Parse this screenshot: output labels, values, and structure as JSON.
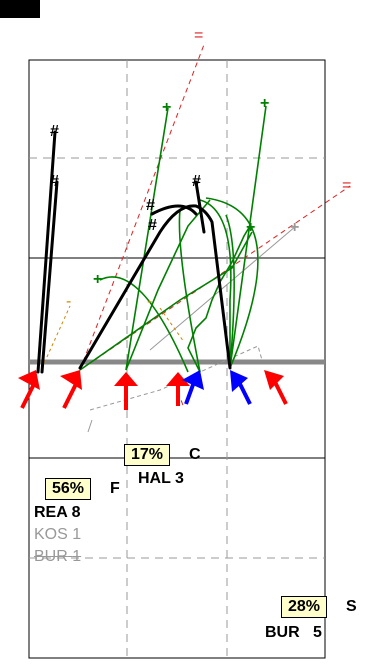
{
  "colors": {
    "field_line": "#000000",
    "grid_dash": "#999999",
    "scrimmage": "#888888",
    "offense_arrow": "#ff0000",
    "defense_arrow": "#0000ff",
    "route_black": "#000000",
    "route_green": "#008000",
    "pct_box_fill": "#ffffcc",
    "dim_text": "#999999"
  },
  "icons": {
    "corner_block": "black-rectangle",
    "offense_marker": "red-arrow-icon",
    "defense_marker": "blue-arrow-icon"
  },
  "route_markers": {
    "black_end": "#",
    "green_end": "+",
    "red_end": "=",
    "minus": "-"
  },
  "zones": {
    "center": {
      "pct": "17%",
      "letter": "C",
      "players": [
        {
          "name": "HAL",
          "count": "3"
        }
      ]
    },
    "flat": {
      "pct": "56%",
      "letter": "F",
      "players": [
        {
          "name": "REA",
          "count": "8"
        },
        {
          "name": "KOS",
          "count": "1"
        },
        {
          "name": "BUR",
          "count": "1"
        }
      ]
    },
    "sideline": {
      "pct": "28%",
      "letter": "S",
      "players": [
        {
          "name": "BUR",
          "count": "5"
        }
      ]
    }
  }
}
